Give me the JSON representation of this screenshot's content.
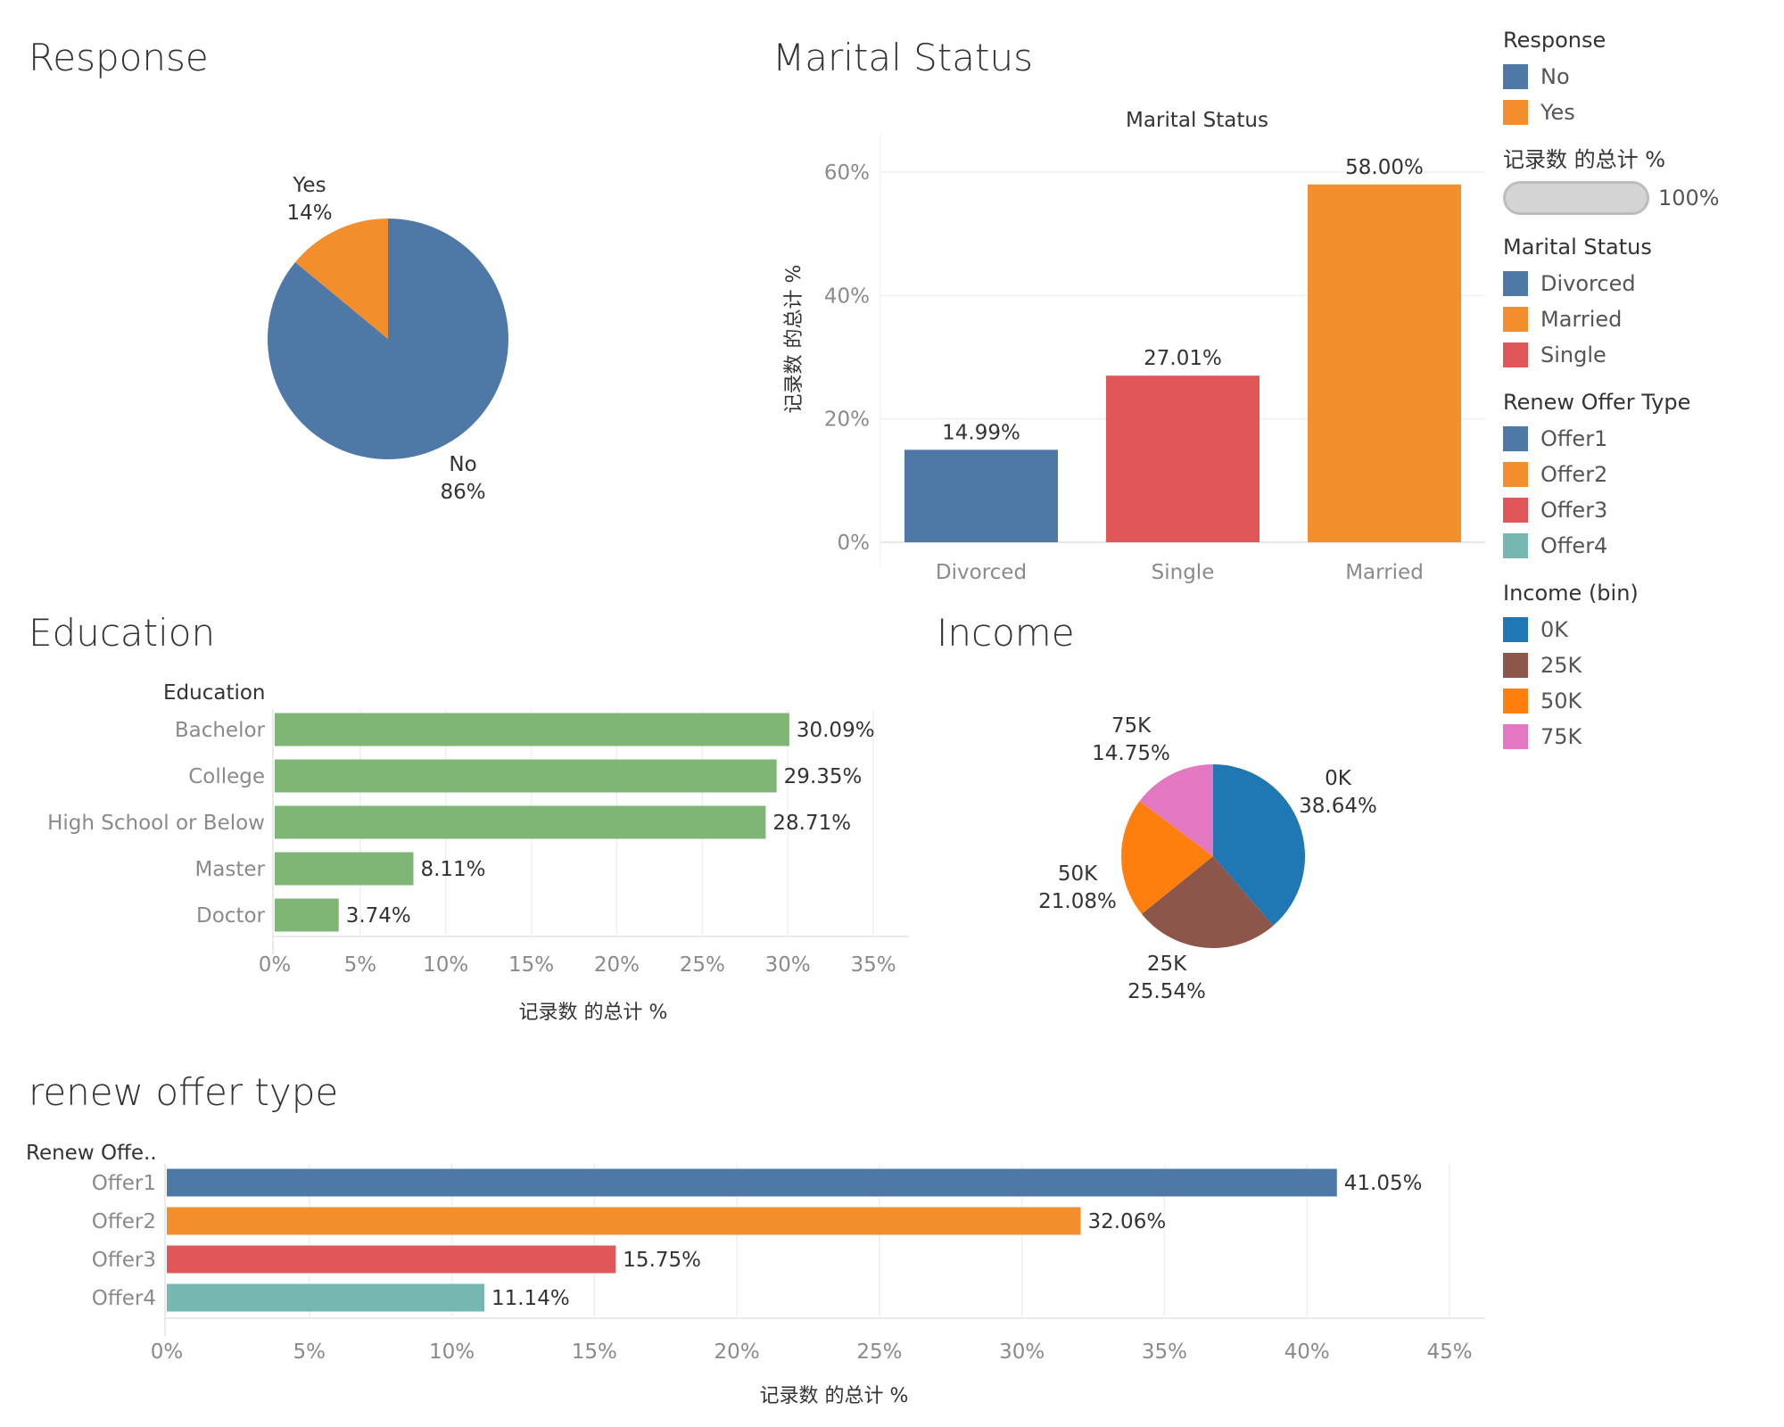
{
  "titles": {
    "response": "Response",
    "marital": "Marital Status",
    "education": "Education",
    "income": "Income",
    "renew": "renew offer type"
  },
  "colors": {
    "blue": "#4e79a7",
    "orange": "#f28e2b",
    "red": "#e15759",
    "teal": "#76b7b2",
    "green": "#7fb575",
    "income_0k": "#1f77b4",
    "income_25k": "#8c564b",
    "income_50k": "#ff7f0e",
    "income_75k": "#e377c2"
  },
  "legend": {
    "response_title": "Response",
    "response_items": [
      {
        "label": "No",
        "color": "#4e79a7"
      },
      {
        "label": "Yes",
        "color": "#f28e2b"
      }
    ],
    "pct_title": "记录数 的总计 %",
    "pct_value": "100%",
    "marital_title": "Marital Status",
    "marital_items": [
      {
        "label": "Divorced",
        "color": "#4e79a7"
      },
      {
        "label": "Married",
        "color": "#f28e2b"
      },
      {
        "label": "Single",
        "color": "#e15759"
      }
    ],
    "renew_title": "Renew Offer Type",
    "renew_items": [
      {
        "label": "Offer1",
        "color": "#4e79a7"
      },
      {
        "label": "Offer2",
        "color": "#f28e2b"
      },
      {
        "label": "Offer3",
        "color": "#e15759"
      },
      {
        "label": "Offer4",
        "color": "#76b7b2"
      }
    ],
    "income_title": "Income (bin)",
    "income_items": [
      {
        "label": "0K",
        "color": "#1f77b4"
      },
      {
        "label": "25K",
        "color": "#8c564b"
      },
      {
        "label": "50K",
        "color": "#ff7f0e"
      },
      {
        "label": "75K",
        "color": "#e377c2"
      }
    ]
  },
  "chart_data": [
    {
      "id": "response",
      "type": "pie",
      "title": "Response",
      "slices": [
        {
          "name": "No",
          "value": 86,
          "label": "86%",
          "color": "#4e79a7"
        },
        {
          "name": "Yes",
          "value": 14,
          "label": "14%",
          "color": "#f28e2b"
        }
      ]
    },
    {
      "id": "marital",
      "type": "bar",
      "title": "Marital Status",
      "header": "Marital Status",
      "ylabel": "记录数 的总计 %",
      "categories": [
        "Divorced",
        "Single",
        "Married"
      ],
      "values": [
        14.99,
        27.01,
        58.0
      ],
      "value_labels": [
        "14.99%",
        "27.01%",
        "58.00%"
      ],
      "colors": [
        "#4e79a7",
        "#e15759",
        "#f28e2b"
      ],
      "ylim": [
        0,
        60
      ],
      "yticks": [
        0,
        20,
        40,
        60
      ],
      "ytick_labels": [
        "0%",
        "20%",
        "40%",
        "60%"
      ],
      "grid": true
    },
    {
      "id": "education",
      "type": "bar",
      "orientation": "horizontal",
      "title": "Education",
      "header": "Education",
      "xlabel": "记录数 的总计 %",
      "categories": [
        "Bachelor",
        "College",
        "High School or Below",
        "Master",
        "Doctor"
      ],
      "values": [
        30.09,
        29.35,
        28.71,
        8.11,
        3.74
      ],
      "value_labels": [
        "30.09%",
        "29.35%",
        "28.71%",
        "8.11%",
        "3.74%"
      ],
      "color": "#7fb575",
      "xlim": [
        0,
        35
      ],
      "xticks": [
        0,
        5,
        10,
        15,
        20,
        25,
        30,
        35
      ],
      "xtick_labels": [
        "0%",
        "5%",
        "10%",
        "15%",
        "20%",
        "25%",
        "30%",
        "35%"
      ],
      "grid": true
    },
    {
      "id": "income",
      "type": "pie",
      "title": "Income",
      "slices": [
        {
          "name": "0K",
          "value": 38.64,
          "label": "38.64%",
          "color": "#1f77b4"
        },
        {
          "name": "25K",
          "value": 25.54,
          "label": "25.54%",
          "color": "#8c564b"
        },
        {
          "name": "50K",
          "value": 21.08,
          "label": "21.08%",
          "color": "#ff7f0e"
        },
        {
          "name": "75K",
          "value": 14.75,
          "label": "14.75%",
          "color": "#e377c2"
        }
      ]
    },
    {
      "id": "renew",
      "type": "bar",
      "orientation": "horizontal",
      "title": "renew offer type",
      "header": "Renew Offe..",
      "xlabel": "记录数 的总计 %",
      "categories": [
        "Offer1",
        "Offer2",
        "Offer3",
        "Offer4"
      ],
      "values": [
        41.05,
        32.06,
        15.75,
        11.14
      ],
      "value_labels": [
        "41.05%",
        "32.06%",
        "15.75%",
        "11.14%"
      ],
      "colors": [
        "#4e79a7",
        "#f28e2b",
        "#e15759",
        "#76b7b2"
      ],
      "xlim": [
        0,
        45
      ],
      "xticks": [
        0,
        5,
        10,
        15,
        20,
        25,
        30,
        35,
        40,
        45
      ],
      "xtick_labels": [
        "0%",
        "5%",
        "10%",
        "15%",
        "20%",
        "25%",
        "30%",
        "35%",
        "40%",
        "45%"
      ],
      "grid": true
    }
  ]
}
